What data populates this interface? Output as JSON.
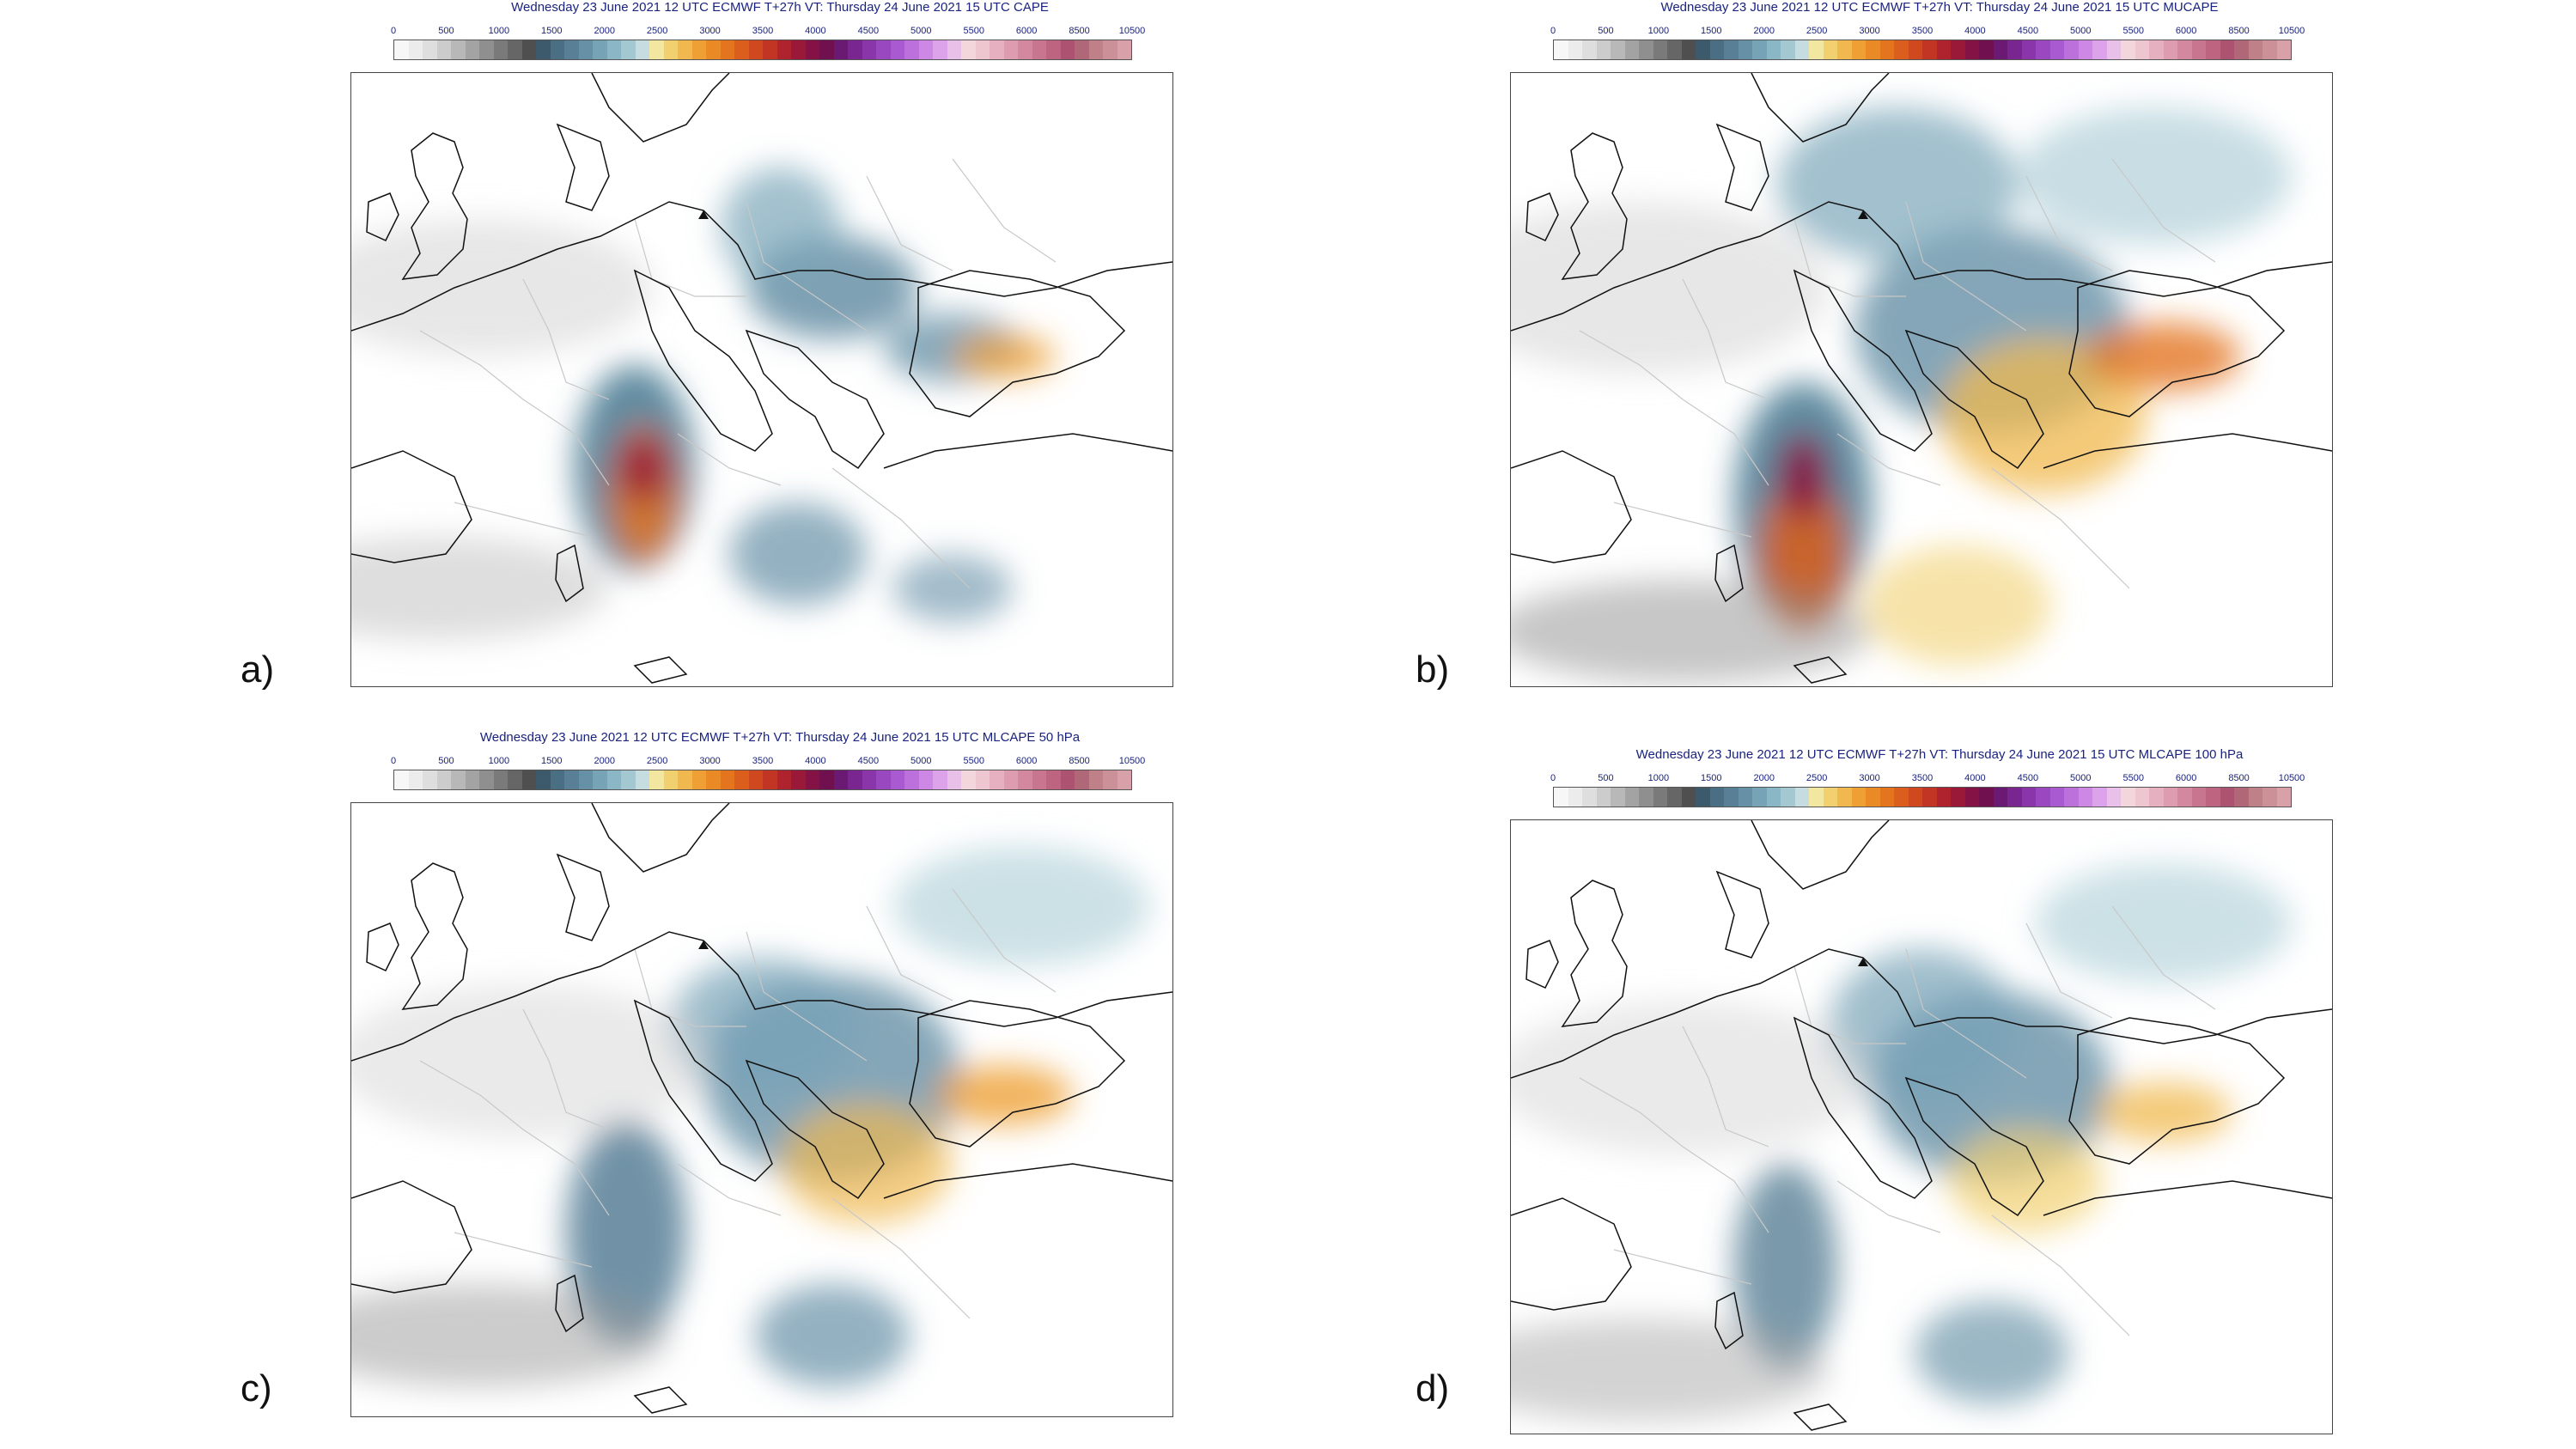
{
  "panels": [
    {
      "letter": "a)",
      "title": "Wednesday 23 June 2021 12 UTC ECMWF T+27h VT: Thursday 24 June 2021 15 UTC CAPE"
    },
    {
      "letter": "b)",
      "title": "Wednesday 23 June 2021 12 UTC ECMWF T+27h VT: Thursday 24 June 2021 15 UTC MUCAPE"
    },
    {
      "letter": "c)",
      "title": "Wednesday 23 June 2021 12 UTC ECMWF T+27h VT: Thursday 24 June 2021 15 UTC MLCAPE 50 hPa"
    },
    {
      "letter": "d)",
      "title": "Wednesday 23 June 2021 12 UTC ECMWF T+27h VT: Thursday 24 June 2021 15 UTC MLCAPE 100 hPa"
    }
  ],
  "colorbar": {
    "tick_labels": [
      "0",
      "500",
      "1000",
      "1500",
      "2000",
      "2500",
      "3000",
      "3500",
      "4000",
      "4500",
      "5000",
      "5500",
      "6000",
      "8500",
      "10500"
    ],
    "colors": [
      "#f7f7f7",
      "#ececec",
      "#dedede",
      "#cccccc",
      "#b8b8b8",
      "#a3a3a3",
      "#8f8f8f",
      "#7a7a7a",
      "#666666",
      "#4f4f4f",
      "#3d5a6c",
      "#4a6f84",
      "#587f96",
      "#6690a6",
      "#77a3b6",
      "#8ab6c5",
      "#a3c8d2",
      "#c5dde0",
      "#f2e6a0",
      "#f2d070",
      "#f0b84e",
      "#eea034",
      "#ea8a26",
      "#e4741e",
      "#dc5e1c",
      "#d0481e",
      "#c23424",
      "#ae232e",
      "#9a1838",
      "#851244",
      "#70104e",
      "#6a1a72",
      "#7a2690",
      "#8a36aa",
      "#9a48c0",
      "#aa5ad0",
      "#bc70dc",
      "#cc88e4",
      "#dca2ea",
      "#e8c0e8",
      "#f2d6dc",
      "#eec6d0",
      "#e6b0c0",
      "#de9cb0",
      "#d488a0",
      "#c87690",
      "#bc6480",
      "#ae5272",
      "#b06878",
      "#c08088",
      "#cc9098",
      "#d8a0a8"
    ]
  },
  "map_colors": {
    "coast": "#111111",
    "border": "#c8c8c8"
  }
}
